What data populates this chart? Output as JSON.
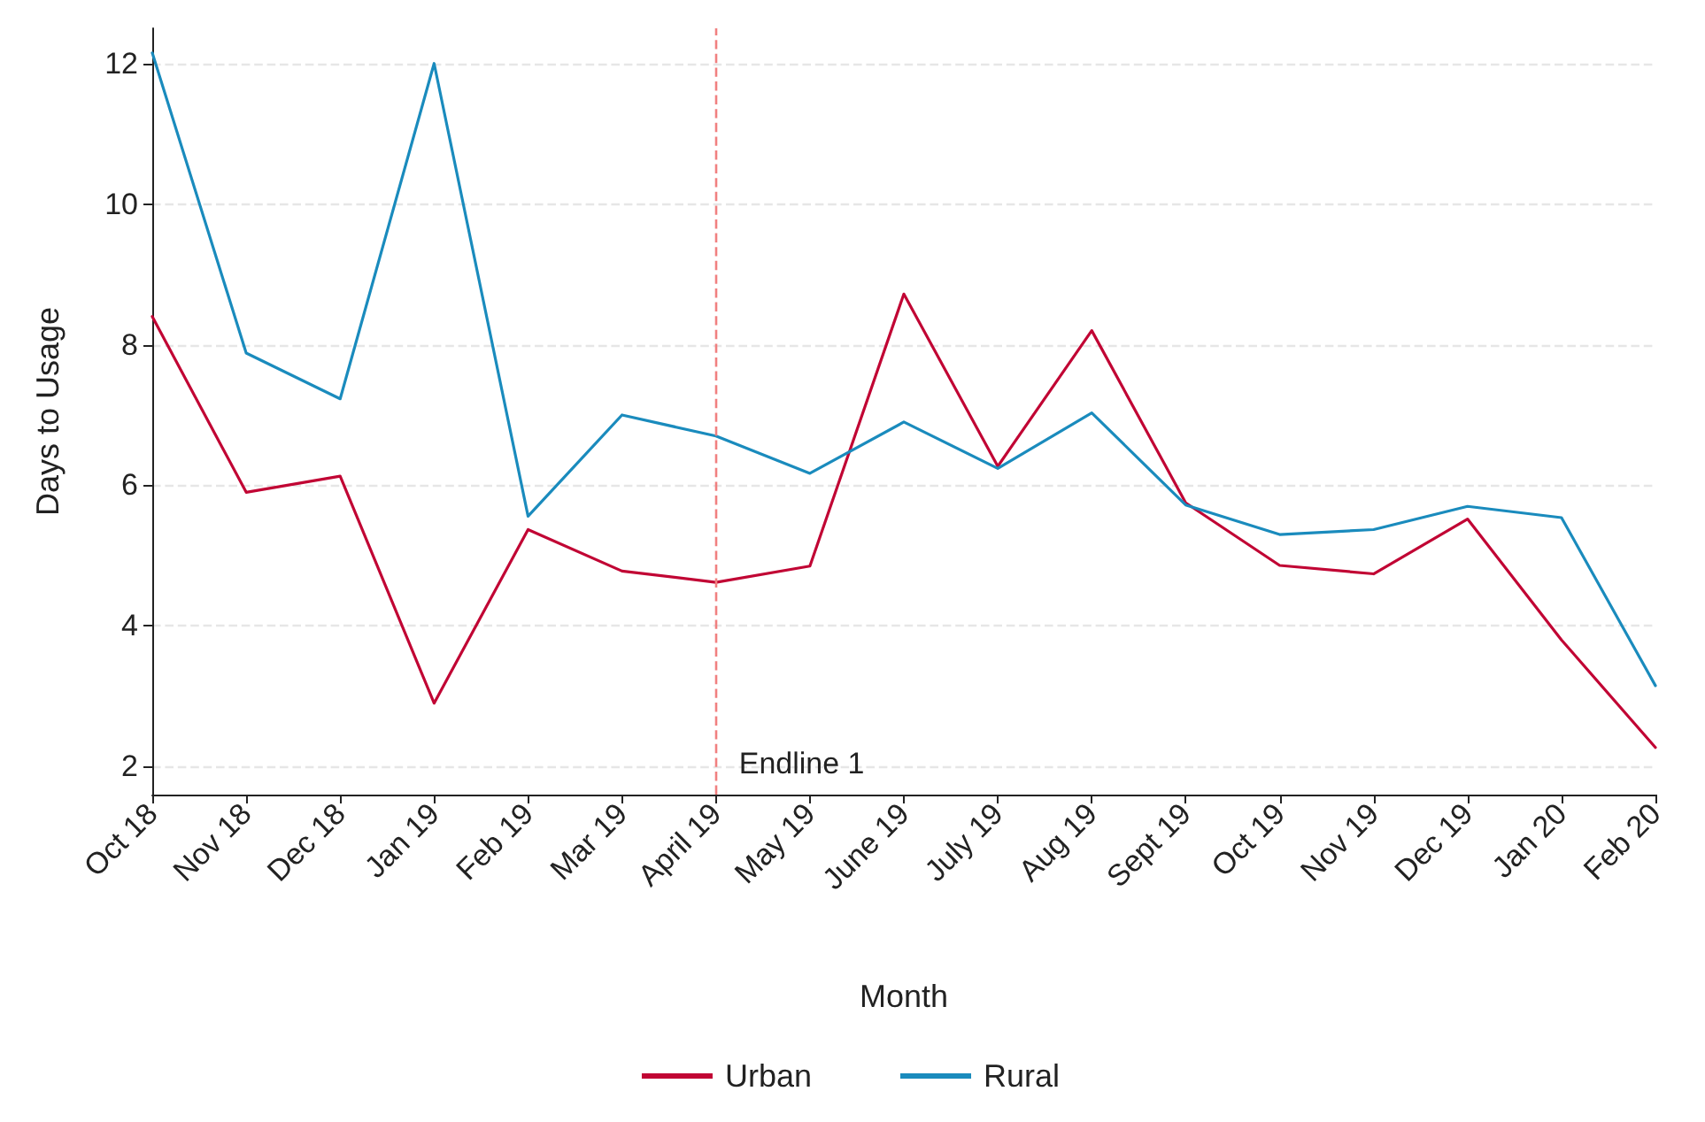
{
  "chart_data": {
    "type": "line",
    "xlabel": "Month",
    "ylabel": "Days to Usage",
    "categories": [
      "Oct 18",
      "Nov 18",
      "Dec 18",
      "Jan 19",
      "Feb 19",
      "Mar 19",
      "April 19",
      "May 19",
      "June 19",
      "July 19",
      "Aug 19",
      "Sept 19",
      "Oct 19",
      "Nov 19",
      "Dec 19",
      "Jan 20",
      "Feb 20"
    ],
    "series": [
      {
        "name": "Urban",
        "color": "#c10534",
        "values": [
          8.4,
          5.9,
          6.13,
          2.9,
          5.37,
          4.78,
          4.62,
          4.85,
          8.72,
          6.27,
          8.2,
          5.75,
          4.86,
          4.74,
          5.52,
          3.8,
          2.27
        ]
      },
      {
        "name": "Rural",
        "color": "#1a8bbd",
        "values": [
          12.15,
          7.88,
          7.23,
          12.0,
          5.56,
          7.0,
          6.7,
          6.17,
          6.9,
          6.24,
          7.03,
          5.72,
          5.3,
          5.37,
          5.7,
          5.54,
          3.15
        ]
      }
    ],
    "ylim": [
      1.6,
      12.5
    ],
    "yticks": [
      2,
      4,
      6,
      8,
      10,
      12
    ],
    "grid": "y",
    "legend": "bottom",
    "marker": "none",
    "line_style": "solid",
    "ref_lines": [
      {
        "axis": "x",
        "value": "April 19",
        "label": "Endline 1",
        "color": "#f08080",
        "line_style": "dashed"
      }
    ]
  }
}
